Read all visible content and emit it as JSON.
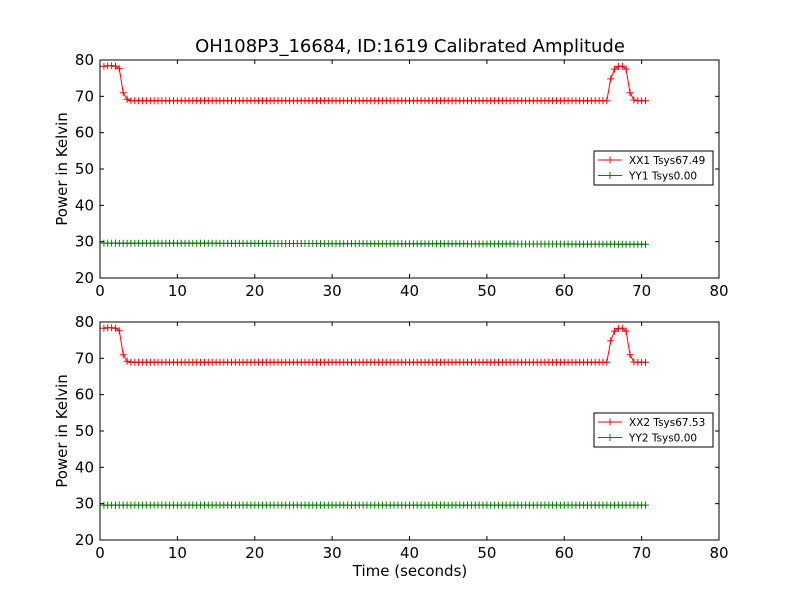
{
  "chart_data": {
    "title": "OH108P3_16684, ID:1619 Calibrated Amplitude",
    "xlabel": "Time (seconds)",
    "panels": [
      {
        "type": "line",
        "ylabel": "Power in Kelvin",
        "xlim": [
          0,
          80
        ],
        "ylim": [
          20,
          80
        ],
        "xticks": [
          0,
          10,
          20,
          30,
          40,
          50,
          60,
          70,
          80
        ],
        "yticks": [
          20,
          30,
          40,
          50,
          60,
          70,
          80
        ],
        "legend_position": "right",
        "series": [
          {
            "name": "XX1 Tsys67.49",
            "color": "#ff0000",
            "marker": "plus",
            "x": [
              0.5,
              1.0,
              1.5,
              2.0,
              2.5,
              3.0,
              3.5,
              4.0,
              65.5,
              66.0,
              66.5,
              67.0,
              67.5,
              68.0,
              68.5,
              69.0,
              69.5,
              70.0,
              70.5
            ],
            "y": [
              78.3,
              78.4,
              78.4,
              78.3,
              77.6,
              71.0,
              69.2,
              68.8,
              68.8,
              74.8,
              77.5,
              78.2,
              78.3,
              77.5,
              71.0,
              69.0,
              68.8,
              68.8,
              68.8
            ]
          },
          {
            "name": "YY1 Tsys0.00",
            "color": "#008000",
            "marker": "plus",
            "x": [
              0.5,
              70.5
            ],
            "y": [
              29.6,
              29.3
            ]
          }
        ]
      },
      {
        "type": "line",
        "ylabel": "Power in Kelvin",
        "xlim": [
          0,
          80
        ],
        "ylim": [
          20,
          80
        ],
        "xticks": [
          0,
          10,
          20,
          30,
          40,
          50,
          60,
          70,
          80
        ],
        "yticks": [
          20,
          30,
          40,
          50,
          60,
          70,
          80
        ],
        "legend_position": "right",
        "series": [
          {
            "name": "XX2 Tsys67.53",
            "color": "#ff0000",
            "marker": "plus",
            "x": [
              0.5,
              1.0,
              1.5,
              2.0,
              2.5,
              3.0,
              3.5,
              4.0,
              65.5,
              66.0,
              66.5,
              67.0,
              67.5,
              68.0,
              68.5,
              69.0,
              69.5,
              70.0,
              70.5
            ],
            "y": [
              78.3,
              78.4,
              78.4,
              78.3,
              77.6,
              71.0,
              69.2,
              68.9,
              68.9,
              74.8,
              77.5,
              78.2,
              78.3,
              77.5,
              71.0,
              69.0,
              68.9,
              68.9,
              68.9
            ]
          },
          {
            "name": "YY2 Tsys0.00",
            "color": "#008000",
            "marker": "plus",
            "x": [
              0.5,
              70.5
            ],
            "y": [
              29.6,
              29.6
            ]
          }
        ]
      }
    ]
  }
}
